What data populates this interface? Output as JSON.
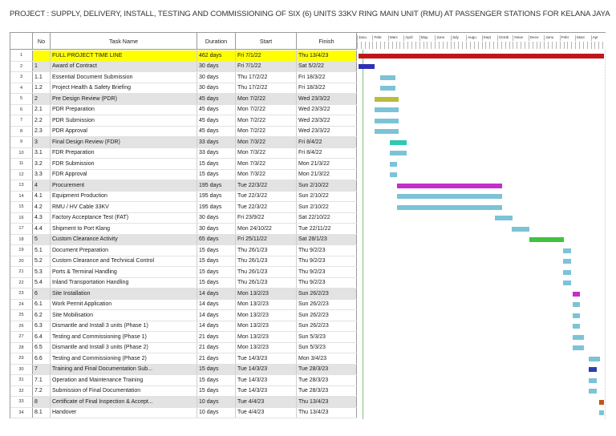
{
  "title": "PROJECT : SUPPLY, DELIVERY, INSTALL, TESTING AND COMMISSIONING OF SIX (6) UNITS 33KV RING MAIN UNIT (RMU) AT PASSENGER STATIONS FOR KELANA JAYA LINE",
  "columns": {
    "no": "No",
    "task": "Task Name",
    "duration": "Duration",
    "start": "Start",
    "finish": "Finish"
  },
  "months": [
    "Janu",
    "Febr",
    "Marc",
    "April",
    "May",
    "June",
    "July",
    "Augu",
    "Sept",
    "Octob",
    "Nove",
    "Dece",
    "Janu",
    "Febr",
    "Marc",
    "Apr"
  ],
  "colors": {
    "project": "#c0161b",
    "summary_blue": "#2f2fb5",
    "task": "#7cc3d6",
    "olive": "#b9bd3a",
    "teal": "#2fc8b0",
    "magenta": "#c32fc8",
    "green": "#3fc33f",
    "summary_navy": "#2a3fb0",
    "orange": "#c2531b",
    "project_row": "#ffff00"
  },
  "tasks": [
    {
      "id": "1",
      "no": "",
      "name": "FULL PROJECT TIME LINE",
      "duration": "462 days",
      "start": "Fri 7/1/22",
      "finish": "Thu 13/4/23",
      "kind": "project",
      "color": "project",
      "bar": [
        0.0,
        1.0
      ]
    },
    {
      "id": "2",
      "no": "1",
      "name": "Award of Contract",
      "duration": "30 days",
      "start": "Fri 7/1/22",
      "finish": "Sat 5/2/22",
      "kind": "summary",
      "color": "summary_blue",
      "bar": [
        0.0,
        0.066
      ]
    },
    {
      "id": "3",
      "no": "1.1",
      "name": "Essential Document Submission",
      "duration": "30 days",
      "start": "Thu 17/2/22",
      "finish": "Fri 18/3/22",
      "kind": "task",
      "color": "task",
      "bar": [
        0.087,
        0.152
      ]
    },
    {
      "id": "4",
      "no": "1.2",
      "name": "Project Health & Safety Briefing",
      "duration": "30 days",
      "start": "Thu 17/2/22",
      "finish": "Fri 18/3/22",
      "kind": "task",
      "color": "task",
      "bar": [
        0.087,
        0.152
      ]
    },
    {
      "id": "5",
      "no": "2",
      "name": "Pre Design Review (PDR)",
      "duration": "45 days",
      "start": "Mon 7/2/22",
      "finish": "Wed 23/3/22",
      "kind": "summary",
      "color": "olive",
      "bar": [
        0.066,
        0.163
      ]
    },
    {
      "id": "6",
      "no": "2.1",
      "name": "PDR Preparation",
      "duration": "45 days",
      "start": "Mon 7/2/22",
      "finish": "Wed 23/3/22",
      "kind": "task",
      "color": "task",
      "bar": [
        0.066,
        0.163
      ]
    },
    {
      "id": "7",
      "no": "2.2",
      "name": "PDR Submission",
      "duration": "45 days",
      "start": "Mon 7/2/22",
      "finish": "Wed 23/3/22",
      "kind": "task",
      "color": "task",
      "bar": [
        0.066,
        0.163
      ]
    },
    {
      "id": "8",
      "no": "2.3",
      "name": "PDR Approval",
      "duration": "45 days",
      "start": "Mon 7/2/22",
      "finish": "Wed 23/3/22",
      "kind": "task",
      "color": "task",
      "bar": [
        0.066,
        0.163
      ]
    },
    {
      "id": "9",
      "no": "3",
      "name": "Final Design Review (FDR)",
      "duration": "33 days",
      "start": "Mon 7/3/22",
      "finish": "Fri 8/4/22",
      "kind": "summary",
      "color": "teal",
      "bar": [
        0.126,
        0.197
      ]
    },
    {
      "id": "10",
      "no": "3.1",
      "name": "FDR Preparation",
      "duration": "33 days",
      "start": "Mon 7/3/22",
      "finish": "Fri 8/4/22",
      "kind": "task",
      "color": "task",
      "bar": [
        0.126,
        0.197
      ]
    },
    {
      "id": "11",
      "no": "3.2",
      "name": "FDR Submission",
      "duration": "15 days",
      "start": "Mon 7/3/22",
      "finish": "Mon 21/3/22",
      "kind": "task",
      "color": "task",
      "bar": [
        0.126,
        0.158
      ]
    },
    {
      "id": "12",
      "no": "3.3",
      "name": "FDR Approval",
      "duration": "15 days",
      "start": "Mon 7/3/22",
      "finish": "Mon 21/3/22",
      "kind": "task",
      "color": "task",
      "bar": [
        0.126,
        0.158
      ]
    },
    {
      "id": "13",
      "no": "4",
      "name": "Procurement",
      "duration": "195 days",
      "start": "Tue 22/3/22",
      "finish": "Sun 2/10/22",
      "kind": "summary",
      "color": "magenta",
      "bar": [
        0.156,
        0.584
      ]
    },
    {
      "id": "14",
      "no": "4.1",
      "name": "Equipment Production",
      "duration": "195 days",
      "start": "Tue 22/3/22",
      "finish": "Sun 2/10/22",
      "kind": "task",
      "color": "task",
      "bar": [
        0.156,
        0.584
      ]
    },
    {
      "id": "15",
      "no": "4.2",
      "name": "RMU / HV Cable 33KV",
      "duration": "195 days",
      "start": "Tue 22/3/22",
      "finish": "Sun 2/10/22",
      "kind": "task",
      "color": "task",
      "bar": [
        0.156,
        0.584
      ]
    },
    {
      "id": "16",
      "no": "4.3",
      "name": "Factory Acceptance Test (FAT)",
      "duration": "30 days",
      "start": "Fri 23/9/22",
      "finish": "Sat 22/10/22",
      "kind": "task",
      "color": "task",
      "bar": [
        0.556,
        0.627
      ]
    },
    {
      "id": "17",
      "no": "4.4",
      "name": "Shipment to Port Klang",
      "duration": "30 days",
      "start": "Mon 24/10/22",
      "finish": "Tue 22/11/22",
      "kind": "task",
      "color": "task",
      "bar": [
        0.624,
        0.695
      ]
    },
    {
      "id": "18",
      "no": "5",
      "name": "Custom Clearance Activity",
      "duration": "65 days",
      "start": "Fri 25/11/22",
      "finish": "Sat 28/1/23",
      "kind": "summary",
      "color": "green",
      "bar": [
        0.695,
        0.838
      ]
    },
    {
      "id": "19",
      "no": "5.1",
      "name": "Document Preparation",
      "duration": "15 days",
      "start": "Thu 26/1/23",
      "finish": "Thu 9/2/23",
      "kind": "task",
      "color": "task",
      "bar": [
        0.832,
        0.866
      ]
    },
    {
      "id": "20",
      "no": "5.2",
      "name": "Custom Clearance and Technical Control",
      "duration": "15 days",
      "start": "Thu 26/1/23",
      "finish": "Thu 9/2/23",
      "kind": "task",
      "color": "task",
      "bar": [
        0.832,
        0.866
      ]
    },
    {
      "id": "21",
      "no": "5.3",
      "name": "Ports & Terminal Handling",
      "duration": "15 days",
      "start": "Thu 26/1/23",
      "finish": "Thu 9/2/23",
      "kind": "task",
      "color": "task",
      "bar": [
        0.832,
        0.866
      ]
    },
    {
      "id": "22",
      "no": "5.4",
      "name": "Inland Transportation Handling",
      "duration": "15 days",
      "start": "Thu 26/1/23",
      "finish": "Thu 9/2/23",
      "kind": "task",
      "color": "task",
      "bar": [
        0.832,
        0.866
      ]
    },
    {
      "id": "23",
      "no": "6",
      "name": "Site Installation",
      "duration": "14 days",
      "start": "Mon 13/2/23",
      "finish": "Sun 26/2/23",
      "kind": "summary",
      "color": "magenta",
      "bar": [
        0.872,
        0.903
      ]
    },
    {
      "id": "24",
      "no": "6.1",
      "name": "Work Permit Application",
      "duration": "14 days",
      "start": "Mon 13/2/23",
      "finish": "Sun 26/2/23",
      "kind": "task",
      "color": "task",
      "bar": [
        0.872,
        0.903
      ]
    },
    {
      "id": "25",
      "no": "6.2",
      "name": "Site Mobilisation",
      "duration": "14 days",
      "start": "Mon 13/2/23",
      "finish": "Sun 26/2/23",
      "kind": "task",
      "color": "task",
      "bar": [
        0.872,
        0.903
      ]
    },
    {
      "id": "26",
      "no": "6.3",
      "name": "Dismantle and Install 3 units (Phase 1)",
      "duration": "14 days",
      "start": "Mon 13/2/23",
      "finish": "Sun 26/2/23",
      "kind": "task",
      "color": "task",
      "bar": [
        0.872,
        0.903
      ]
    },
    {
      "id": "27",
      "no": "6.4",
      "name": "Testing and Commissioning (Phase 1)",
      "duration": "21 days",
      "start": "Mon 13/2/23",
      "finish": "Sun 5/3/23",
      "kind": "task",
      "color": "task",
      "bar": [
        0.872,
        0.918
      ]
    },
    {
      "id": "28",
      "no": "6.5",
      "name": "Dismantle and Install 3 units (Phase 2)",
      "duration": "21 days",
      "start": "Mon 13/2/23",
      "finish": "Sun 5/3/23",
      "kind": "task",
      "color": "task",
      "bar": [
        0.872,
        0.918
      ]
    },
    {
      "id": "29",
      "no": "6.6",
      "name": "Testing and Commissioning (Phase 2)",
      "duration": "21 days",
      "start": "Tue 14/3/23",
      "finish": "Mon 3/4/23",
      "kind": "task",
      "color": "task",
      "bar": [
        0.938,
        0.985
      ]
    },
    {
      "id": "30",
      "no": "7",
      "name": "Training and Final Documentation Sub...",
      "duration": "15 days",
      "start": "Tue 14/3/23",
      "finish": "Tue 28/3/23",
      "kind": "summary",
      "color": "summary_navy",
      "bar": [
        0.938,
        0.972
      ]
    },
    {
      "id": "31",
      "no": "7.1",
      "name": "Operation and Maintenance Training",
      "duration": "15 days",
      "start": "Tue 14/3/23",
      "finish": "Tue 28/3/23",
      "kind": "task",
      "color": "task",
      "bar": [
        0.938,
        0.972
      ]
    },
    {
      "id": "32",
      "no": "7.2",
      "name": "Submission of Final Documentation",
      "duration": "15 days",
      "start": "Tue 14/3/23",
      "finish": "Tue 28/3/23",
      "kind": "task",
      "color": "task",
      "bar": [
        0.938,
        0.972
      ]
    },
    {
      "id": "33",
      "no": "8",
      "name": "Certificate of Final Inspection & Accept...",
      "duration": "10 days",
      "start": "Tue 4/4/23",
      "finish": "Thu 13/4/23",
      "kind": "summary",
      "color": "orange",
      "bar": [
        0.979,
        1.0
      ]
    },
    {
      "id": "34",
      "no": "8.1",
      "name": "Handover",
      "duration": "10 days",
      "start": "Tue 4/4/23",
      "finish": "Thu 13/4/23",
      "kind": "task",
      "color": "task",
      "bar": [
        0.979,
        1.0
      ]
    }
  ]
}
